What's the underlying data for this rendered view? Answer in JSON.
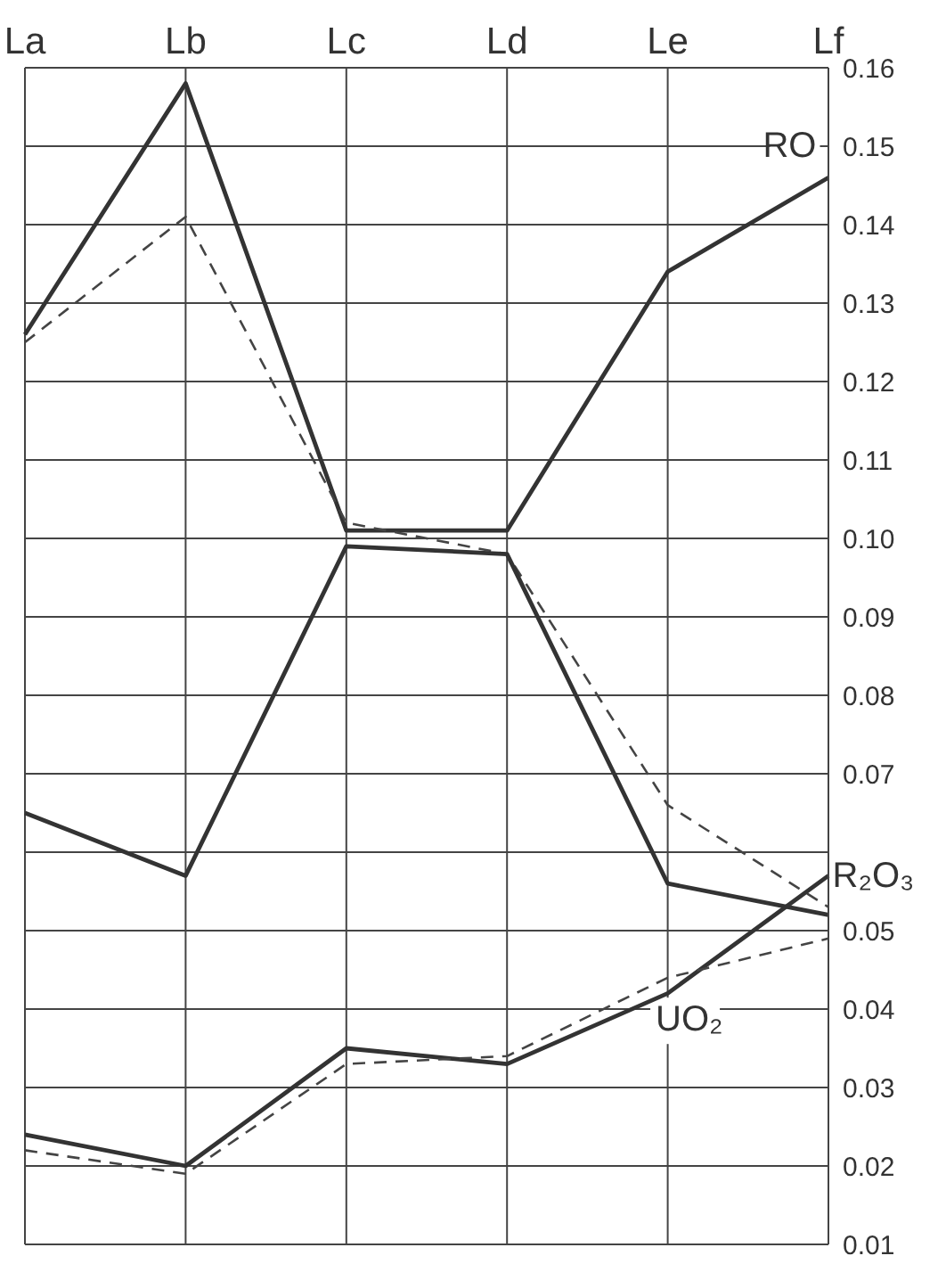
{
  "chart_data": {
    "type": "line",
    "categories": [
      "La",
      "Lb",
      "Lc",
      "Ld",
      "Le",
      "Lf"
    ],
    "series": [
      {
        "color": "#333333",
        "line_style": "solid",
        "values": [
          0.126,
          0.158,
          0.101,
          0.101,
          0.134,
          0.146
        ]
      },
      {
        "color": "#444444",
        "line_style": "dashed",
        "values": [
          0.125,
          0.141,
          0.102,
          0.098,
          0.066,
          0.053
        ]
      },
      {
        "color": "#333333",
        "line_style": "solid",
        "values": [
          0.065,
          0.057,
          0.099,
          0.098,
          0.056,
          0.052
        ]
      },
      {
        "color": "#333333",
        "line_style": "solid",
        "values": [
          0.024,
          0.02,
          0.035,
          0.033,
          0.042,
          0.057
        ]
      },
      {
        "color": "#444444",
        "line_style": "dashed",
        "values": [
          0.022,
          0.019,
          0.033,
          0.034,
          0.044,
          0.049
        ]
      }
    ],
    "ylim": [
      0.01,
      0.16
    ],
    "yticks": [
      0.01,
      0.02,
      0.03,
      0.04,
      0.05,
      {
        "value": 0.06,
        "label": null
      },
      0.07,
      0.08,
      0.09,
      {
        "value": 0.1,
        "label": "0.10"
      },
      0.11,
      0.12,
      0.13,
      0.14,
      0.15,
      0.16
    ],
    "grid": true,
    "legend": false,
    "marker": "none",
    "annotations": [
      "RO",
      "R₂O₃",
      "UO₂"
    ]
  }
}
